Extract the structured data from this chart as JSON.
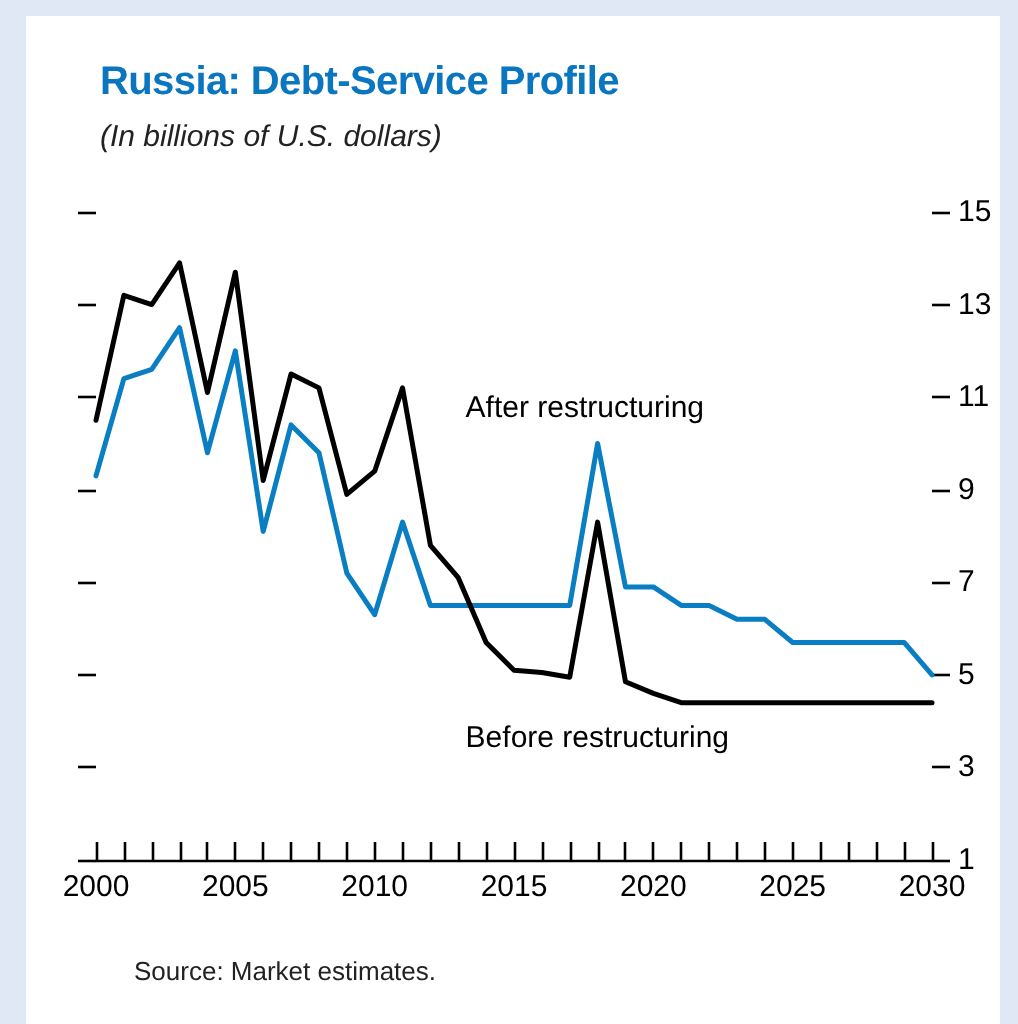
{
  "chart_data": {
    "type": "line",
    "title": "Russia: Debt-Service Profile",
    "subtitle": "(In billions of U.S. dollars)",
    "x": [
      2000,
      2001,
      2002,
      2003,
      2004,
      2005,
      2006,
      2007,
      2008,
      2009,
      2010,
      2011,
      2012,
      2013,
      2014,
      2015,
      2016,
      2017,
      2018,
      2019,
      2020,
      2021,
      2022,
      2023,
      2024,
      2025,
      2026,
      2027,
      2028,
      2029,
      2030
    ],
    "series": [
      {
        "name": "After restructuring",
        "color": "#0a7ec2",
        "values": [
          9.3,
          11.4,
          11.6,
          12.5,
          9.8,
          12.0,
          8.1,
          10.4,
          9.8,
          7.2,
          6.3,
          8.3,
          6.5,
          6.5,
          6.5,
          6.5,
          6.5,
          6.5,
          10.0,
          6.9,
          6.9,
          6.5,
          6.5,
          6.2,
          6.2,
          5.7,
          5.7,
          5.7,
          5.7,
          5.7,
          5.0
        ]
      },
      {
        "name": "Before restructuring",
        "color": "#000000",
        "values": [
          10.5,
          13.2,
          13.0,
          13.9,
          11.1,
          13.7,
          9.2,
          11.5,
          11.2,
          8.9,
          9.4,
          11.2,
          7.8,
          7.1,
          5.7,
          5.1,
          5.05,
          4.95,
          8.3,
          4.85,
          4.6,
          4.4,
          4.4,
          4.4,
          4.4,
          4.4,
          4.4,
          4.4,
          4.4,
          4.4,
          4.4
        ]
      }
    ],
    "xlim": [
      2000,
      2030
    ],
    "xticks": [
      2000,
      {
        "value": 2001,
        "label": null
      },
      {
        "value": 2002,
        "label": null
      },
      {
        "value": 2003,
        "label": null
      },
      {
        "value": 2004,
        "label": null
      },
      2005,
      {
        "value": 2006,
        "label": null
      },
      {
        "value": 2007,
        "label": null
      },
      {
        "value": 2008,
        "label": null
      },
      {
        "value": 2009,
        "label": null
      },
      2010,
      {
        "value": 2011,
        "label": null
      },
      {
        "value": 2012,
        "label": null
      },
      {
        "value": 2013,
        "label": null
      },
      {
        "value": 2014,
        "label": null
      },
      2015,
      {
        "value": 2016,
        "label": null
      },
      {
        "value": 2017,
        "label": null
      },
      {
        "value": 2018,
        "label": null
      },
      {
        "value": 2019,
        "label": null
      },
      2020,
      {
        "value": 2021,
        "label": null
      },
      {
        "value": 2022,
        "label": null
      },
      {
        "value": 2023,
        "label": null
      },
      {
        "value": 2024,
        "label": null
      },
      2025,
      {
        "value": 2026,
        "label": null
      },
      {
        "value": 2027,
        "label": null
      },
      {
        "value": 2028,
        "label": null
      },
      {
        "value": 2029,
        "label": null
      },
      2030
    ],
    "ylim": [
      1,
      15
    ],
    "yticks": [
      1,
      3,
      5,
      7,
      9,
      11,
      13,
      15
    ],
    "grid": false,
    "legend": false,
    "marker": "none",
    "line_style": "solid",
    "annotations": [
      "Source: Market estimates."
    ]
  }
}
